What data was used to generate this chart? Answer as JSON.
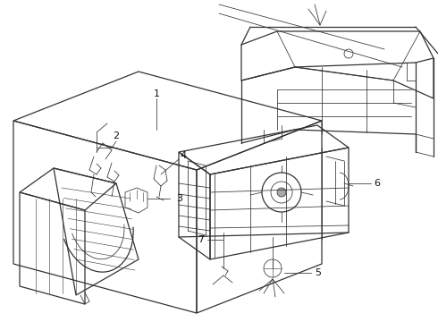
{
  "background_color": "#ffffff",
  "line_color": "#333333",
  "label_color": "#111111",
  "fig_width": 4.9,
  "fig_height": 3.6,
  "dpi": 100,
  "font_size": 8,
  "lw_main": 0.9,
  "lw_thin": 0.55,
  "lw_thick": 1.2
}
